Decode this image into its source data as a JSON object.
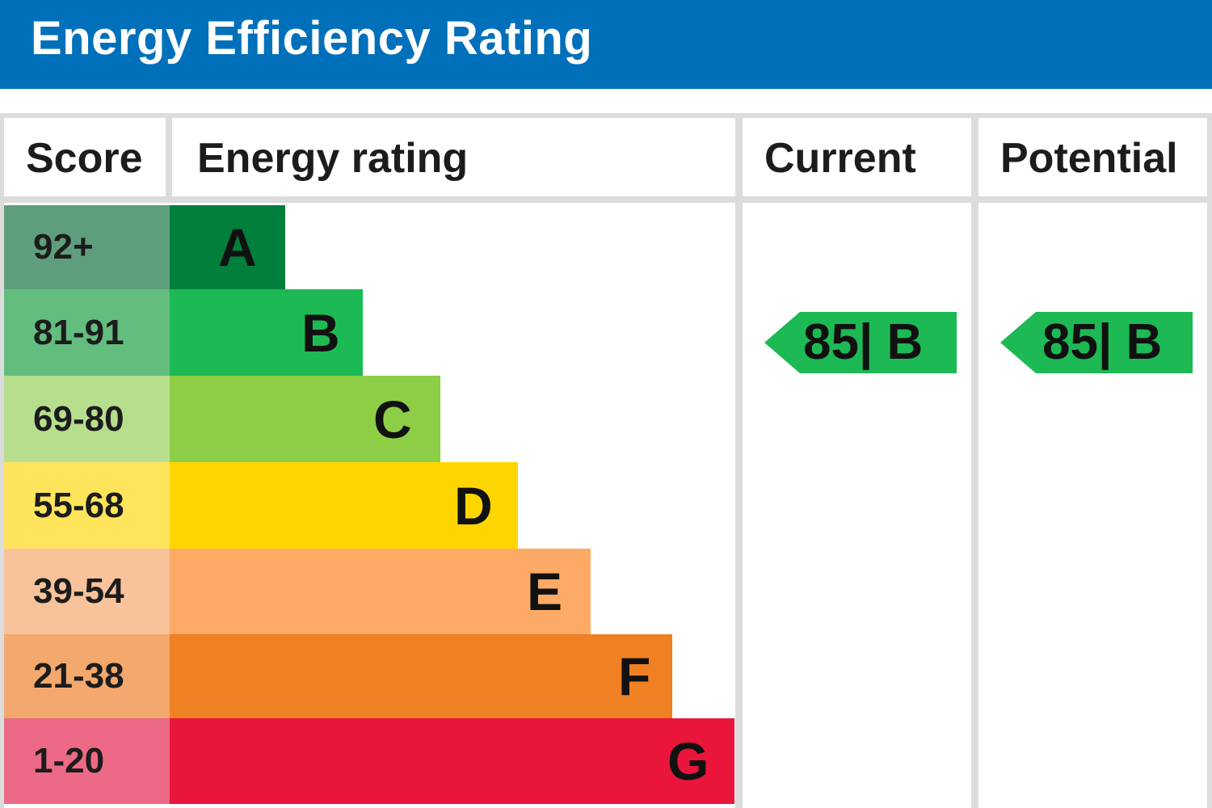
{
  "header": {
    "title": "Energy Efficiency Rating",
    "color": "#0070bb"
  },
  "columns": {
    "score": "Score",
    "rating": "Energy rating",
    "current": "Current",
    "potential": "Potential"
  },
  "bands": [
    {
      "score": "92+",
      "letter": "A",
      "color": "#007f3d",
      "score_bg": "#5f9e7c"
    },
    {
      "score": "81-91",
      "letter": "B",
      "color": "#1db954",
      "score_bg": "#62bd7f"
    },
    {
      "score": "69-80",
      "letter": "C",
      "color": "#8dce46",
      "score_bg": "#b7de8d"
    },
    {
      "score": "55-68",
      "letter": "D",
      "color": "#ffd500",
      "score_bg": "#ffe45c"
    },
    {
      "score": "39-54",
      "letter": "E",
      "color": "#fcaa65",
      "score_bg": "#f8c39b"
    },
    {
      "score": "21-38",
      "letter": "F",
      "color": "#ef8023",
      "score_bg": "#f3a86d"
    },
    {
      "score": "1-20",
      "letter": "G",
      "color": "#e9153b",
      "score_bg": "#ec6a86"
    }
  ],
  "current": {
    "value": 85,
    "band": "B",
    "label": "85| B",
    "color": "#1db954"
  },
  "potential": {
    "value": 85,
    "band": "B",
    "label": "85| B",
    "color": "#1db954"
  }
}
